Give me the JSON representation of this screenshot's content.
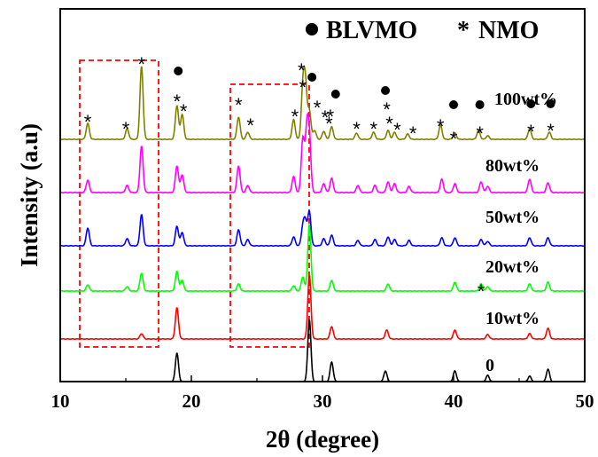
{
  "chart_data": {
    "type": "line",
    "xlabel": "2θ (degree)",
    "ylabel": "Intensity (a.u)",
    "xlim": [
      10,
      50
    ],
    "xticks": [
      "10",
      "20",
      "30",
      "40",
      "50"
    ],
    "grid": false,
    "legend": {
      "placement": "top-right",
      "entries": [
        {
          "marker": "●",
          "text": "BLVMO"
        },
        {
          "marker": "*",
          "text": "NMO"
        }
      ]
    },
    "series": [
      {
        "name": "0",
        "color": "#000000",
        "peaks": [
          [
            18.9,
            32
          ],
          [
            29.0,
            70
          ],
          [
            30.7,
            22
          ],
          [
            34.8,
            12
          ],
          [
            40.1,
            12
          ],
          [
            42.6,
            7
          ],
          [
            45.8,
            6
          ],
          [
            47.2,
            14
          ]
        ]
      },
      {
        "name": "10wt%",
        "color": "#ff0000",
        "peaks": [
          [
            16.2,
            6
          ],
          [
            18.9,
            35
          ],
          [
            29.0,
            72
          ],
          [
            30.7,
            14
          ],
          [
            34.9,
            10
          ],
          [
            40.1,
            10
          ],
          [
            42.6,
            5
          ],
          [
            45.8,
            6
          ],
          [
            47.2,
            12
          ]
        ]
      },
      {
        "name": "20wt%",
        "color": "#00ff00",
        "peaks": [
          [
            12.1,
            7
          ],
          [
            15.1,
            5
          ],
          [
            16.2,
            20
          ],
          [
            18.9,
            22
          ],
          [
            19.3,
            12
          ],
          [
            23.6,
            8
          ],
          [
            27.8,
            6
          ],
          [
            28.5,
            16
          ],
          [
            29.0,
            75
          ],
          [
            30.7,
            12
          ],
          [
            35.0,
            8
          ],
          [
            40.1,
            10
          ],
          [
            42.1,
            8
          ],
          [
            42.6,
            5
          ],
          [
            45.8,
            8
          ],
          [
            47.2,
            10
          ]
        ]
      },
      {
        "name": "50wt%",
        "color": "#0000ff",
        "peaks": [
          [
            12.1,
            20
          ],
          [
            15.1,
            8
          ],
          [
            16.2,
            35
          ],
          [
            18.9,
            22
          ],
          [
            19.3,
            15
          ],
          [
            23.6,
            18
          ],
          [
            24.3,
            7
          ],
          [
            27.8,
            10
          ],
          [
            28.5,
            20
          ],
          [
            28.7,
            25
          ],
          [
            29.0,
            38
          ],
          [
            30.1,
            8
          ],
          [
            30.7,
            12
          ],
          [
            32.7,
            6
          ],
          [
            34.0,
            7
          ],
          [
            35.0,
            10
          ],
          [
            35.5,
            7
          ],
          [
            36.6,
            6
          ],
          [
            39.1,
            9
          ],
          [
            40.1,
            9
          ],
          [
            42.1,
            7
          ],
          [
            42.6,
            5
          ],
          [
            45.8,
            9
          ],
          [
            47.2,
            9
          ]
        ]
      },
      {
        "name": "80wt%",
        "color": "#ff00ff",
        "peaks": [
          [
            12.1,
            14
          ],
          [
            15.1,
            8
          ],
          [
            16.2,
            52
          ],
          [
            18.9,
            30
          ],
          [
            19.3,
            20
          ],
          [
            23.6,
            30
          ],
          [
            24.3,
            8
          ],
          [
            27.8,
            18
          ],
          [
            28.5,
            60
          ],
          [
            28.8,
            65
          ],
          [
            29.0,
            60
          ],
          [
            30.1,
            10
          ],
          [
            30.7,
            16
          ],
          [
            32.7,
            8
          ],
          [
            34.0,
            8
          ],
          [
            35.0,
            12
          ],
          [
            35.5,
            10
          ],
          [
            36.6,
            7
          ],
          [
            39.1,
            15
          ],
          [
            40.1,
            10
          ],
          [
            42.1,
            12
          ],
          [
            42.6,
            7
          ],
          [
            45.8,
            15
          ],
          [
            47.2,
            11
          ]
        ]
      },
      {
        "name": "100wt%",
        "color": "#808000",
        "peaks": [
          [
            12.1,
            18
          ],
          [
            15.1,
            12
          ],
          [
            16.2,
            82
          ],
          [
            18.9,
            38
          ],
          [
            19.3,
            28
          ],
          [
            23.6,
            25
          ],
          [
            24.3,
            8
          ],
          [
            27.8,
            22
          ],
          [
            28.5,
            55
          ],
          [
            28.7,
            60
          ],
          [
            29.0,
            32
          ],
          [
            29.4,
            10
          ],
          [
            30.1,
            9
          ],
          [
            30.7,
            14
          ],
          [
            32.6,
            7
          ],
          [
            33.9,
            8
          ],
          [
            35.0,
            10
          ],
          [
            35.5,
            8
          ],
          [
            36.5,
            6
          ],
          [
            39.0,
            16
          ],
          [
            40.1,
            7
          ],
          [
            41.9,
            10
          ],
          [
            42.6,
            4
          ],
          [
            45.8,
            12
          ],
          [
            47.3,
            8
          ]
        ]
      }
    ],
    "annotations": {
      "nmo_star_count": 26,
      "blvmo_dot_count": 7
    }
  }
}
